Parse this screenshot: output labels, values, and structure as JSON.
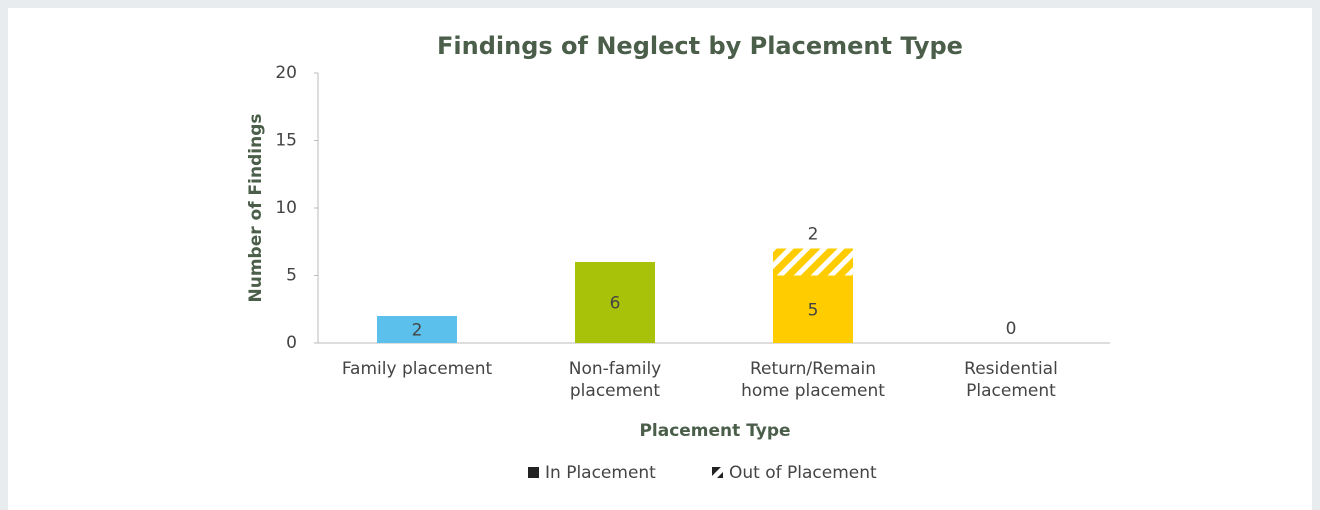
{
  "chart_data": {
    "type": "stacked_bar",
    "title": "Findings of Neglect by Placement Type",
    "x_label": "Placement Type",
    "y_label": "Number of Findings",
    "categories": [
      "Family placement",
      "Non-family placement",
      "Return/Remain home placement",
      "Residential Placement"
    ],
    "category_colors": [
      "#5bc0eb",
      "#a8c20a",
      "#ffcc00",
      "#cccccc"
    ],
    "series": [
      {
        "name": "In Placement",
        "color": "#222222",
        "values": [
          2,
          6,
          5,
          0
        ]
      },
      {
        "name": "Out of Placement",
        "color": "#222222",
        "pattern": "hatch",
        "values": [
          null,
          null,
          2,
          null
        ]
      }
    ],
    "ylim": [
      0,
      20
    ],
    "yticks": [
      0,
      5,
      10,
      15,
      20
    ],
    "legend": "bottom",
    "grid": false
  }
}
